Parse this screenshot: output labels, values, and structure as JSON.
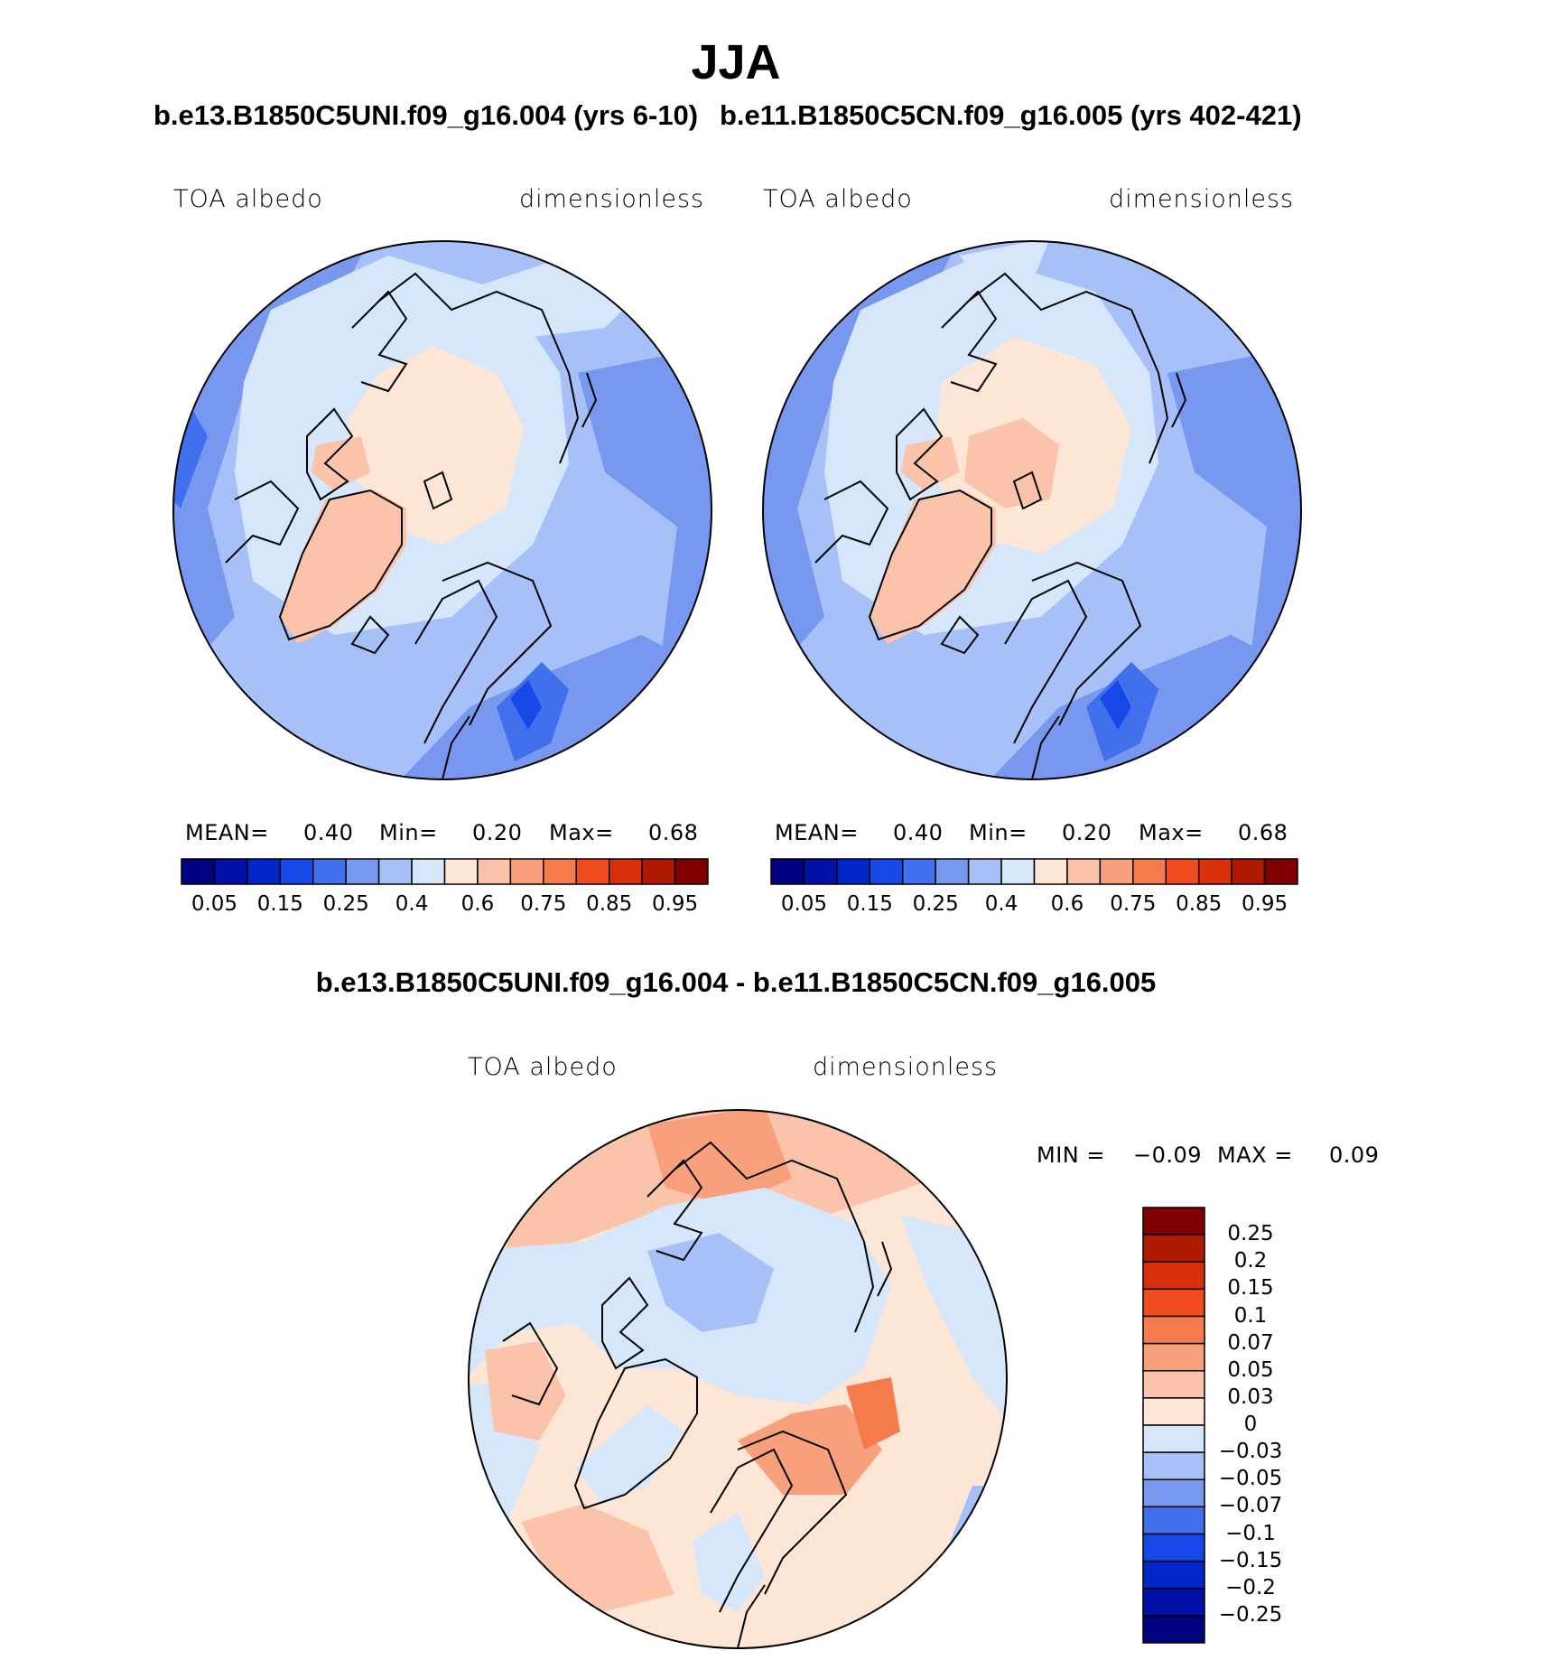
{
  "title": "JJA",
  "panels": [
    {
      "case_title": "b.e13.B1850C5UNI.f09_g16.004 (yrs 6-10)",
      "variable": "TOA albedo",
      "units": "dimensionless",
      "stats": {
        "mean_label": "MEAN=",
        "mean": "0.40",
        "min_label": "Min=",
        "min": "0.20",
        "max_label": "Max=",
        "max": "0.68"
      }
    },
    {
      "case_title": "b.e11.B1850C5CN.f09_g16.005 (yrs 402-421)",
      "variable": "TOA albedo",
      "units": "dimensionless",
      "stats": {
        "mean_label": "MEAN=",
        "mean": "0.40",
        "min_label": "Min=",
        "min": "0.20",
        "max_label": "Max=",
        "max": "0.68"
      }
    }
  ],
  "abs_colorbar": {
    "colors": [
      "#000080",
      "#0010a8",
      "#0028c8",
      "#1848e8",
      "#4070ec",
      "#7898f0",
      "#a8c0f8",
      "#d6e6fb",
      "#fde6d6",
      "#fbc4aa",
      "#f8a07c",
      "#f57a4c",
      "#f04c20",
      "#d83008",
      "#b01a02",
      "#800000"
    ],
    "labels": [
      "0.05",
      "0.15",
      "0.25",
      "0.4",
      "0.6",
      "0.75",
      "0.85",
      "0.95"
    ]
  },
  "diff_panel": {
    "title": "b.e13.B1850C5UNI.f09_g16.004 - b.e11.B1850C5CN.f09_g16.005",
    "variable": "TOA albedo",
    "units": "dimensionless",
    "stats": {
      "min_label": "MIN =",
      "min": "−0.09",
      "max_label": "MAX =",
      "max": "0.09"
    }
  },
  "diff_colorbar": {
    "colors_top_to_bottom": [
      "#800000",
      "#b01a02",
      "#d83008",
      "#f04c20",
      "#f57a4c",
      "#f8a07c",
      "#fbc4aa",
      "#fde6d6",
      "#d6e6fb",
      "#a8c0f8",
      "#7898f0",
      "#4070ec",
      "#1848e8",
      "#0028c8",
      "#0010a8",
      "#000080"
    ],
    "labels": [
      "0.25",
      "0.2",
      "0.15",
      "0.1",
      "0.07",
      "0.05",
      "0.03",
      "0",
      "−0.03",
      "−0.05",
      "−0.07",
      "−0.1",
      "−0.15",
      "−0.2",
      "−0.25"
    ]
  }
}
